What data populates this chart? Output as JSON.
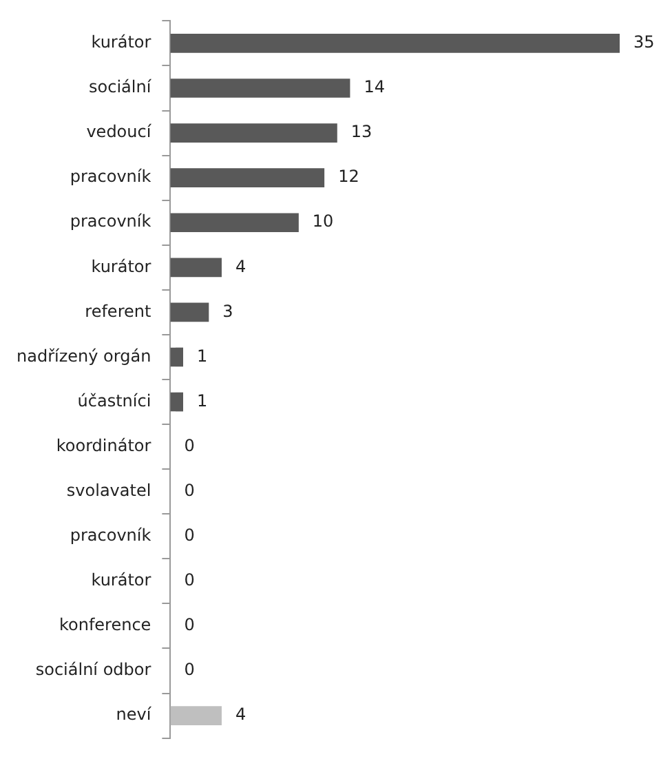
{
  "chart_data": {
    "type": "bar",
    "orientation": "horizontal",
    "categories": [
      "kurátor",
      "sociální",
      "vedoucí",
      "pracovník",
      "pracovník",
      "kurátor",
      "referent",
      "nadřízený orgán",
      "účastníci",
      "koordinátor",
      "svolavatel",
      "pracovník",
      "kurátor",
      "konference",
      "sociální odbor",
      "neví"
    ],
    "values": [
      35,
      14,
      13,
      12,
      10,
      4,
      3,
      1,
      1,
      0,
      0,
      0,
      0,
      0,
      0,
      4
    ],
    "colors": [
      "#595959",
      "#595959",
      "#595959",
      "#595959",
      "#595959",
      "#595959",
      "#595959",
      "#595959",
      "#595959",
      "#595959",
      "#595959",
      "#595959",
      "#595959",
      "#595959",
      "#595959",
      "#bfbfbf"
    ],
    "data_labels": true
  }
}
